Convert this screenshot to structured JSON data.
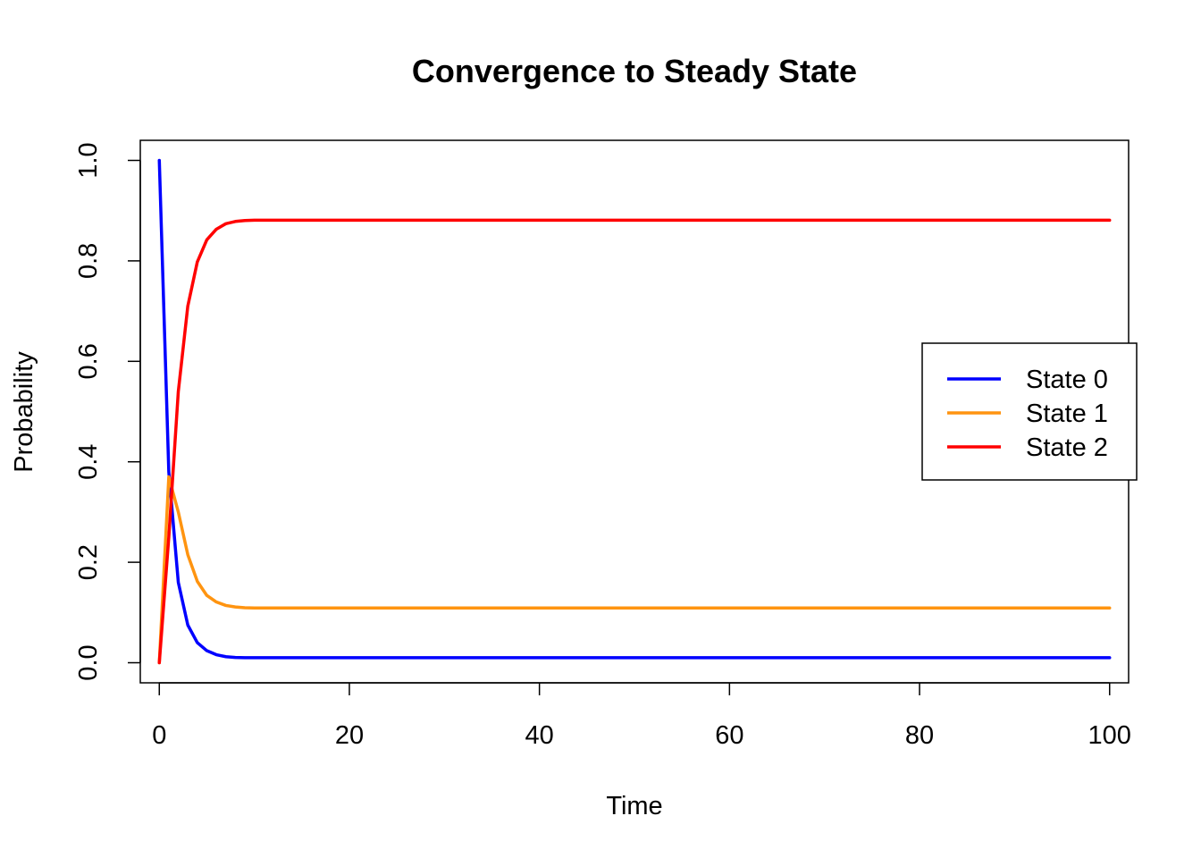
{
  "chart_data": {
    "type": "line",
    "title": "Convergence to Steady State",
    "xlabel": "Time",
    "ylabel": "Probability",
    "xlim": [
      -2,
      102
    ],
    "ylim": [
      -0.04,
      1.04
    ],
    "xticks": [
      0,
      20,
      40,
      60,
      80,
      100
    ],
    "xtick_labels": [
      "0",
      "20",
      "40",
      "60",
      "80",
      "100"
    ],
    "yticks": [
      0.0,
      0.2,
      0.4,
      0.6,
      0.8,
      1.0
    ],
    "ytick_labels": [
      "0.0",
      "0.2",
      "0.4",
      "0.6",
      "0.8",
      "1.0"
    ],
    "grid": false,
    "legend_position": "right",
    "x": [
      0,
      1,
      2,
      3,
      4,
      5,
      6,
      7,
      8,
      9,
      10,
      11,
      12,
      13,
      14,
      15,
      16,
      17,
      18,
      19,
      20,
      21,
      22,
      23,
      24,
      25,
      26,
      27,
      28,
      29,
      30,
      31,
      32,
      33,
      34,
      35,
      36,
      37,
      38,
      39,
      40,
      41,
      42,
      43,
      44,
      45,
      46,
      47,
      48,
      49,
      50,
      51,
      52,
      53,
      54,
      55,
      56,
      57,
      58,
      59,
      60,
      61,
      62,
      63,
      64,
      65,
      66,
      67,
      68,
      69,
      70,
      71,
      72,
      73,
      74,
      75,
      76,
      77,
      78,
      79,
      80,
      81,
      82,
      83,
      84,
      85,
      86,
      87,
      88,
      89,
      90,
      91,
      92,
      93,
      94,
      95,
      96,
      97,
      98,
      99,
      100
    ],
    "series": [
      {
        "name": "State 0",
        "color": "#0000FF",
        "values": [
          1.0,
          0.38,
          0.16,
          0.075,
          0.04,
          0.024,
          0.016,
          0.012,
          0.0105,
          0.0101,
          0.01,
          0.01,
          0.01,
          0.01,
          0.01,
          0.01,
          0.01,
          0.01,
          0.01,
          0.01,
          0.01,
          0.01,
          0.01,
          0.01,
          0.01,
          0.01,
          0.01,
          0.01,
          0.01,
          0.01,
          0.01,
          0.01,
          0.01,
          0.01,
          0.01,
          0.01,
          0.01,
          0.01,
          0.01,
          0.01,
          0.01,
          0.01,
          0.01,
          0.01,
          0.01,
          0.01,
          0.01,
          0.01,
          0.01,
          0.01,
          0.01,
          0.01,
          0.01,
          0.01,
          0.01,
          0.01,
          0.01,
          0.01,
          0.01,
          0.01,
          0.01,
          0.01,
          0.01,
          0.01,
          0.01,
          0.01,
          0.01,
          0.01,
          0.01,
          0.01,
          0.01,
          0.01,
          0.01,
          0.01,
          0.01,
          0.01,
          0.01,
          0.01,
          0.01,
          0.01,
          0.01,
          0.01,
          0.01,
          0.01,
          0.01,
          0.01,
          0.01,
          0.01,
          0.01,
          0.01,
          0.01,
          0.01,
          0.01,
          0.01,
          0.01,
          0.01,
          0.01,
          0.01,
          0.01,
          0.01,
          0.01
        ]
      },
      {
        "name": "State 1",
        "color": "#FF9410",
        "values": [
          0.0,
          0.37,
          0.3,
          0.215,
          0.162,
          0.134,
          0.121,
          0.114,
          0.111,
          0.1095,
          0.109,
          0.109,
          0.109,
          0.109,
          0.109,
          0.109,
          0.109,
          0.109,
          0.109,
          0.109,
          0.109,
          0.109,
          0.109,
          0.109,
          0.109,
          0.109,
          0.109,
          0.109,
          0.109,
          0.109,
          0.109,
          0.109,
          0.109,
          0.109,
          0.109,
          0.109,
          0.109,
          0.109,
          0.109,
          0.109,
          0.109,
          0.109,
          0.109,
          0.109,
          0.109,
          0.109,
          0.109,
          0.109,
          0.109,
          0.109,
          0.109,
          0.109,
          0.109,
          0.109,
          0.109,
          0.109,
          0.109,
          0.109,
          0.109,
          0.109,
          0.109,
          0.109,
          0.109,
          0.109,
          0.109,
          0.109,
          0.109,
          0.109,
          0.109,
          0.109,
          0.109,
          0.109,
          0.109,
          0.109,
          0.109,
          0.109,
          0.109,
          0.109,
          0.109,
          0.109,
          0.109,
          0.109,
          0.109,
          0.109,
          0.109,
          0.109,
          0.109,
          0.109,
          0.109,
          0.109,
          0.109,
          0.109,
          0.109,
          0.109,
          0.109,
          0.109,
          0.109,
          0.109,
          0.109,
          0.109,
          0.109
        ]
      },
      {
        "name": "State 2",
        "color": "#FF0000",
        "values": [
          0.0,
          0.25,
          0.54,
          0.71,
          0.798,
          0.842,
          0.863,
          0.874,
          0.8785,
          0.8804,
          0.881,
          0.881,
          0.881,
          0.881,
          0.881,
          0.881,
          0.881,
          0.881,
          0.881,
          0.881,
          0.881,
          0.881,
          0.881,
          0.881,
          0.881,
          0.881,
          0.881,
          0.881,
          0.881,
          0.881,
          0.881,
          0.881,
          0.881,
          0.881,
          0.881,
          0.881,
          0.881,
          0.881,
          0.881,
          0.881,
          0.881,
          0.881,
          0.881,
          0.881,
          0.881,
          0.881,
          0.881,
          0.881,
          0.881,
          0.881,
          0.881,
          0.881,
          0.881,
          0.881,
          0.881,
          0.881,
          0.881,
          0.881,
          0.881,
          0.881,
          0.881,
          0.881,
          0.881,
          0.881,
          0.881,
          0.881,
          0.881,
          0.881,
          0.881,
          0.881,
          0.881,
          0.881,
          0.881,
          0.881,
          0.881,
          0.881,
          0.881,
          0.881,
          0.881,
          0.881,
          0.881,
          0.881,
          0.881,
          0.881,
          0.881,
          0.881,
          0.881,
          0.881,
          0.881,
          0.881,
          0.881,
          0.881,
          0.881,
          0.881,
          0.881,
          0.881,
          0.881,
          0.881,
          0.881,
          0.881,
          0.881
        ]
      }
    ]
  }
}
